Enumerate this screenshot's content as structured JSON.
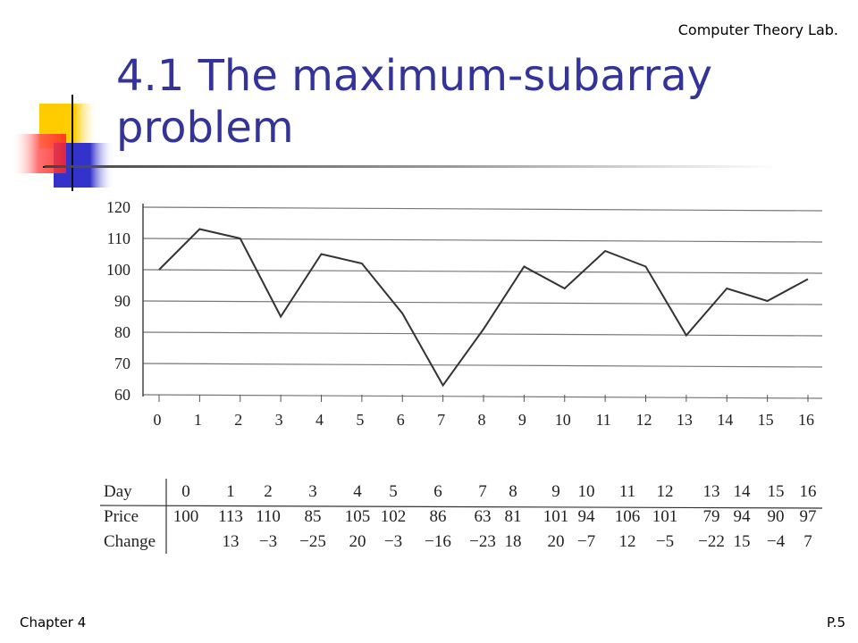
{
  "header": {
    "lab": "Computer Theory Lab."
  },
  "slide": {
    "title": "4.1 The maximum-subarray problem"
  },
  "footer": {
    "chapter": "Chapter 4",
    "page": "P.5"
  },
  "colors": {
    "title": "#333399",
    "deco_yellow": "#ffcc00",
    "deco_blue": "#3333cc",
    "deco_red": "#ff3333",
    "line": "#333333"
  },
  "chart_data": {
    "type": "line",
    "x": [
      0,
      1,
      2,
      3,
      4,
      5,
      6,
      7,
      8,
      9,
      10,
      11,
      12,
      13,
      14,
      15,
      16
    ],
    "series": [
      {
        "values": [
          100,
          113,
          110,
          85,
          105,
          102,
          86,
          63,
          81,
          101,
          94,
          106,
          101,
          79,
          94,
          90,
          97
        ]
      }
    ],
    "xlim": [
      0,
      16
    ],
    "ylim": [
      60,
      120
    ],
    "yticks": [
      60,
      70,
      80,
      90,
      100,
      110,
      120
    ],
    "grid": "horizontal",
    "title": "",
    "xlabel": "",
    "ylabel": ""
  },
  "table": {
    "headers": [
      "Day",
      "Price",
      "Change"
    ],
    "day": [
      "0",
      "1",
      "2",
      "3",
      "4",
      "5",
      "6",
      "7",
      "8",
      "9",
      "10",
      "11",
      "12",
      "13",
      "14",
      "15",
      "16"
    ],
    "price": [
      "100",
      "113",
      "110",
      "85",
      "105",
      "102",
      "86",
      "63",
      "81",
      "101",
      "94",
      "106",
      "101",
      "79",
      "94",
      "90",
      "97"
    ],
    "change": [
      "",
      "13",
      "−3",
      "−25",
      "20",
      "−3",
      "−16",
      "−23",
      "18",
      "20",
      "−7",
      "12",
      "−5",
      "−22",
      "15",
      "−4",
      "7"
    ]
  }
}
